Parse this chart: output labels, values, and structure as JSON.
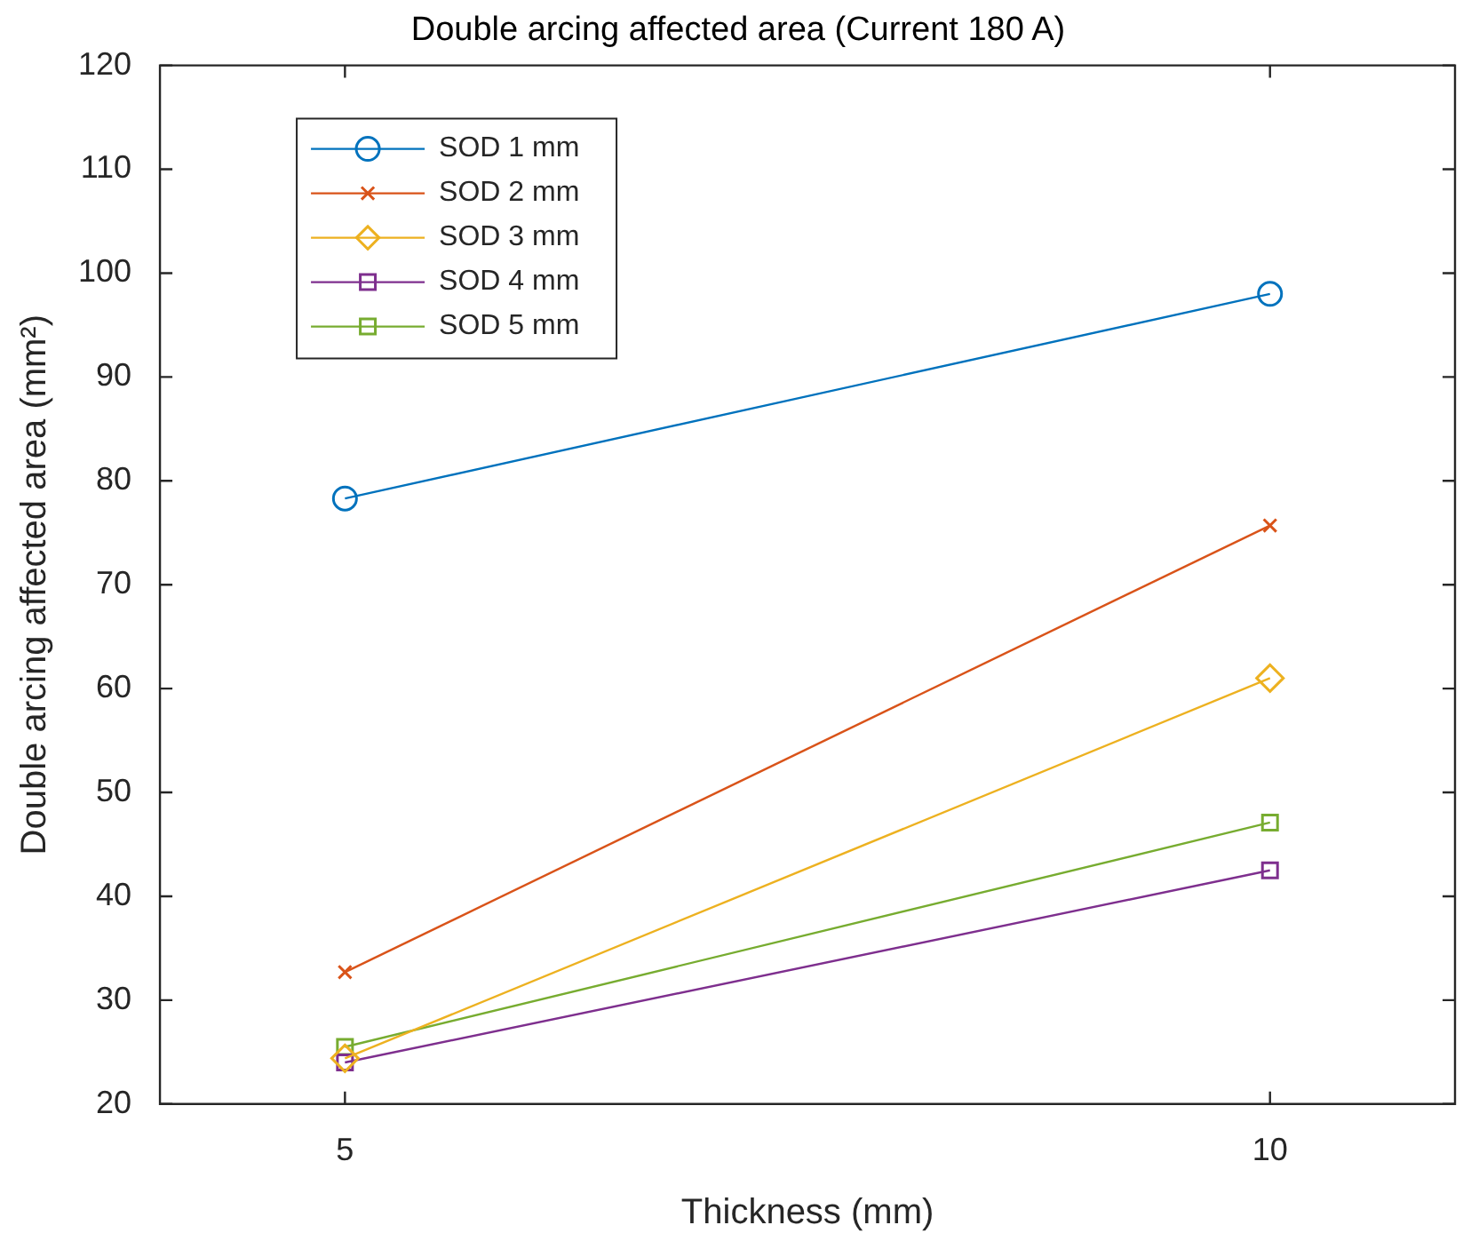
{
  "chart_data": {
    "type": "line",
    "title": "Double arcing affected area (Current 180 A)",
    "xlabel": "Thickness (mm)",
    "ylabel": "Double arcing affected area (mm²)",
    "x": [
      5,
      10
    ],
    "xlim": [
      4,
      11
    ],
    "xticks": [
      5,
      10
    ],
    "ylim": [
      20,
      120
    ],
    "yticks": [
      20,
      30,
      40,
      50,
      60,
      70,
      80,
      90,
      100,
      110,
      120
    ],
    "grid": false,
    "legend": "top left",
    "line_style": "solid",
    "series": [
      {
        "name": "SOD 1 mm",
        "color": "#0072bd",
        "marker": "circle",
        "values": [
          78.3,
          98.0
        ]
      },
      {
        "name": "SOD 2 mm",
        "color": "#d95319",
        "marker": "cross",
        "values": [
          32.7,
          75.7
        ]
      },
      {
        "name": "SOD 3 mm",
        "color": "#edb120",
        "marker": "diamond",
        "values": [
          24.4,
          61.0
        ]
      },
      {
        "name": "SOD 4 mm",
        "color": "#7e2f8e",
        "marker": "square",
        "values": [
          24.0,
          42.5
        ]
      },
      {
        "name": "SOD 5 mm",
        "color": "#77ac30",
        "marker": "square",
        "values": [
          25.5,
          47.1
        ]
      }
    ]
  }
}
